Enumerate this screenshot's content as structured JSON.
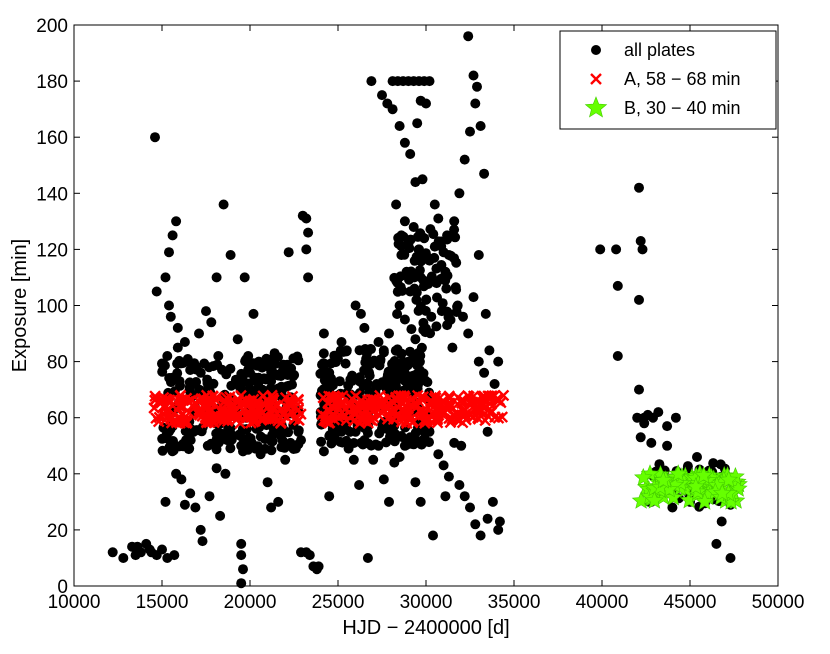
{
  "chart_data": {
    "type": "scatter",
    "title": "",
    "xlabel": "HJD − 2400000 [d]",
    "ylabel": "Exposure [min]",
    "xlim": [
      10000,
      50000
    ],
    "ylim": [
      0,
      200
    ],
    "xticks": [
      10000,
      15000,
      20000,
      25000,
      30000,
      35000,
      40000,
      45000,
      50000
    ],
    "yticks": [
      0,
      20,
      40,
      60,
      80,
      100,
      120,
      140,
      160,
      180,
      200
    ],
    "grid": false,
    "legend": "top-right",
    "series": [
      {
        "name": "all plates",
        "marker": "circle",
        "color": "#000000",
        "points": [
          [
            12200,
            12
          ],
          [
            12800,
            10
          ],
          [
            13300,
            14
          ],
          [
            13500,
            11
          ],
          [
            13800,
            12
          ],
          [
            14100,
            15
          ],
          [
            14400,
            12
          ],
          [
            14700,
            11
          ],
          [
            15000,
            13
          ],
          [
            15300,
            10
          ],
          [
            15700,
            11
          ],
          [
            14300,
            13
          ],
          [
            13600,
            14
          ],
          [
            14600,
            160
          ],
          [
            14700,
            105
          ],
          [
            15200,
            110
          ],
          [
            15400,
            119
          ],
          [
            15600,
            125
          ],
          [
            15800,
            130
          ],
          [
            15500,
            96
          ],
          [
            15900,
            92
          ],
          [
            15300,
            82
          ],
          [
            16000,
            73
          ],
          [
            16300,
            87
          ],
          [
            16500,
            80
          ],
          [
            16800,
            72
          ],
          [
            17100,
            90
          ],
          [
            17500,
            98
          ],
          [
            17800,
            94
          ],
          [
            18200,
            82
          ],
          [
            18500,
            136
          ],
          [
            18900,
            118
          ],
          [
            18100,
            110
          ],
          [
            17200,
            76
          ],
          [
            16600,
            77
          ],
          [
            15100,
            79
          ],
          [
            15400,
            100
          ],
          [
            15900,
            85
          ],
          [
            15400,
            55
          ],
          [
            15800,
            40
          ],
          [
            16100,
            38
          ],
          [
            16300,
            29
          ],
          [
            16600,
            33
          ],
          [
            16900,
            28
          ],
          [
            17200,
            20
          ],
          [
            17300,
            16
          ],
          [
            17700,
            32
          ],
          [
            18100,
            42
          ],
          [
            18300,
            25
          ],
          [
            18600,
            40
          ],
          [
            15200,
            30
          ],
          [
            16800,
            55
          ],
          [
            17600,
            50
          ],
          [
            18700,
            52
          ],
          [
            19300,
            88
          ],
          [
            19700,
            110
          ],
          [
            19900,
            82
          ],
          [
            20200,
            97
          ],
          [
            20500,
            80
          ],
          [
            20800,
            74
          ],
          [
            21100,
            78
          ],
          [
            21400,
            83
          ],
          [
            21600,
            75
          ],
          [
            21800,
            68
          ],
          [
            22200,
            119
          ],
          [
            19500,
            72
          ],
          [
            20000,
            76
          ],
          [
            20700,
            70
          ],
          [
            21200,
            73
          ],
          [
            19400,
            54
          ],
          [
            19500,
            50
          ],
          [
            19600,
            48
          ],
          [
            19800,
            60
          ],
          [
            20100,
            51
          ],
          [
            20300,
            49
          ],
          [
            20600,
            47
          ],
          [
            21000,
            37
          ],
          [
            21200,
            28
          ],
          [
            21600,
            30
          ],
          [
            22000,
            45
          ],
          [
            22300,
            51
          ],
          [
            22600,
            49
          ],
          [
            22900,
            52
          ],
          [
            19500,
            15
          ],
          [
            19500,
            11
          ],
          [
            19600,
            6
          ],
          [
            19500,
            1
          ],
          [
            23000,
            132
          ],
          [
            23200,
            131
          ],
          [
            23300,
            126
          ],
          [
            23200,
            120
          ],
          [
            23300,
            110
          ],
          [
            22900,
            12
          ],
          [
            23200,
            12
          ],
          [
            23400,
            11
          ],
          [
            23600,
            7
          ],
          [
            23800,
            6
          ],
          [
            23900,
            7
          ],
          [
            24200,
            90
          ],
          [
            24500,
            76
          ],
          [
            24800,
            80
          ],
          [
            25200,
            87
          ],
          [
            25500,
            84
          ],
          [
            25800,
            75
          ],
          [
            26000,
            100
          ],
          [
            26300,
            97
          ],
          [
            26500,
            92
          ],
          [
            26800,
            75
          ],
          [
            27100,
            80
          ],
          [
            27300,
            87
          ],
          [
            27600,
            84
          ],
          [
            27900,
            90
          ],
          [
            28100,
            78
          ],
          [
            28400,
            74
          ],
          [
            28700,
            80
          ],
          [
            29000,
            70
          ],
          [
            29300,
            75
          ],
          [
            25100,
            73
          ],
          [
            26600,
            81
          ],
          [
            24600,
            74
          ],
          [
            24200,
            48
          ],
          [
            24500,
            32
          ],
          [
            24900,
            57
          ],
          [
            25200,
            55
          ],
          [
            25600,
            49
          ],
          [
            25900,
            45
          ],
          [
            26200,
            36
          ],
          [
            26500,
            52
          ],
          [
            26700,
            10
          ],
          [
            27000,
            45
          ],
          [
            27300,
            50
          ],
          [
            27600,
            38
          ],
          [
            27900,
            30
          ],
          [
            28200,
            44
          ],
          [
            28500,
            46
          ],
          [
            28800,
            50
          ],
          [
            29100,
            53
          ],
          [
            29400,
            37
          ],
          [
            29700,
            30
          ],
          [
            29900,
            55
          ],
          [
            26000,
            55
          ],
          [
            27500,
            56
          ],
          [
            26900,
            180
          ],
          [
            27500,
            175
          ],
          [
            27800,
            172
          ],
          [
            28100,
            170
          ],
          [
            28100,
            180
          ],
          [
            28400,
            180
          ],
          [
            28700,
            180
          ],
          [
            29000,
            180
          ],
          [
            29300,
            180
          ],
          [
            29600,
            180
          ],
          [
            29900,
            180
          ],
          [
            30200,
            180
          ],
          [
            29700,
            173
          ],
          [
            30000,
            172
          ],
          [
            28500,
            164
          ],
          [
            28800,
            158
          ],
          [
            29100,
            154
          ],
          [
            29500,
            165
          ],
          [
            28600,
            125
          ],
          [
            28800,
            130
          ],
          [
            29000,
            122
          ],
          [
            29300,
            128
          ],
          [
            29600,
            120
          ],
          [
            29900,
            124
          ],
          [
            30200,
            116
          ],
          [
            30500,
            121
          ],
          [
            30700,
            131
          ],
          [
            31000,
            119
          ],
          [
            31300,
            118
          ],
          [
            31600,
            130
          ],
          [
            31900,
            140
          ],
          [
            32200,
            152
          ],
          [
            32500,
            162
          ],
          [
            32800,
            172
          ],
          [
            33100,
            164
          ],
          [
            32400,
            196
          ],
          [
            32700,
            182
          ],
          [
            32900,
            178
          ],
          [
            33300,
            147
          ],
          [
            33000,
            118
          ],
          [
            28300,
            136
          ],
          [
            28600,
            118
          ],
          [
            29400,
            144
          ],
          [
            29800,
            145
          ],
          [
            30500,
            136
          ],
          [
            31200,
            125
          ],
          [
            28500,
            100
          ],
          [
            28800,
            95
          ],
          [
            29100,
            105
          ],
          [
            29400,
            88
          ],
          [
            29700,
            110
          ],
          [
            30000,
            102
          ],
          [
            30300,
            96
          ],
          [
            30600,
            108
          ],
          [
            30900,
            98
          ],
          [
            31200,
            93
          ],
          [
            31500,
            85
          ],
          [
            31800,
            100
          ],
          [
            32100,
            96
          ],
          [
            32400,
            90
          ],
          [
            32700,
            103
          ],
          [
            33000,
            80
          ],
          [
            33300,
            76
          ],
          [
            33600,
            84
          ],
          [
            33900,
            72
          ],
          [
            34100,
            80
          ],
          [
            28900,
            112
          ],
          [
            31100,
            112
          ],
          [
            33400,
            97
          ],
          [
            30200,
            55
          ],
          [
            30400,
            18
          ],
          [
            30700,
            47
          ],
          [
            31000,
            43
          ],
          [
            31300,
            39
          ],
          [
            31600,
            51
          ],
          [
            31900,
            36
          ],
          [
            32200,
            32
          ],
          [
            32500,
            28
          ],
          [
            32800,
            22
          ],
          [
            33100,
            18
          ],
          [
            33500,
            24
          ],
          [
            33800,
            30
          ],
          [
            34100,
            20
          ],
          [
            34200,
            23
          ],
          [
            31100,
            32
          ],
          [
            32000,
            50
          ],
          [
            33500,
            55
          ],
          [
            39900,
            120
          ],
          [
            40800,
            120
          ],
          [
            40900,
            107
          ],
          [
            40900,
            82
          ],
          [
            42100,
            142
          ],
          [
            42200,
            123
          ],
          [
            42300,
            120
          ],
          [
            42100,
            102
          ],
          [
            42100,
            70
          ],
          [
            42000,
            60
          ],
          [
            42400,
            60
          ],
          [
            42600,
            61
          ],
          [
            42900,
            60
          ],
          [
            43200,
            62
          ],
          [
            43700,
            57
          ],
          [
            44200,
            60
          ],
          [
            42400,
            58
          ],
          [
            42200,
            53
          ],
          [
            42800,
            51
          ],
          [
            43700,
            50
          ],
          [
            45400,
            46
          ],
          [
            42800,
            30
          ],
          [
            44000,
            28
          ],
          [
            45000,
            30
          ],
          [
            45800,
            36
          ],
          [
            46500,
            15
          ],
          [
            46800,
            23
          ],
          [
            47300,
            29
          ],
          [
            47300,
            10
          ]
        ]
      },
      {
        "name": "A, 58 − 68 min",
        "marker": "x",
        "color": "#ff0000",
        "x_range": [
          14500,
          34400
        ],
        "y_range": [
          58,
          68
        ]
      },
      {
        "name": "B, 30 − 40 min",
        "marker": "star",
        "color": "#66ff00",
        "x_range": [
          42200,
          47800
        ],
        "y_range": [
          30,
          40
        ]
      }
    ]
  }
}
